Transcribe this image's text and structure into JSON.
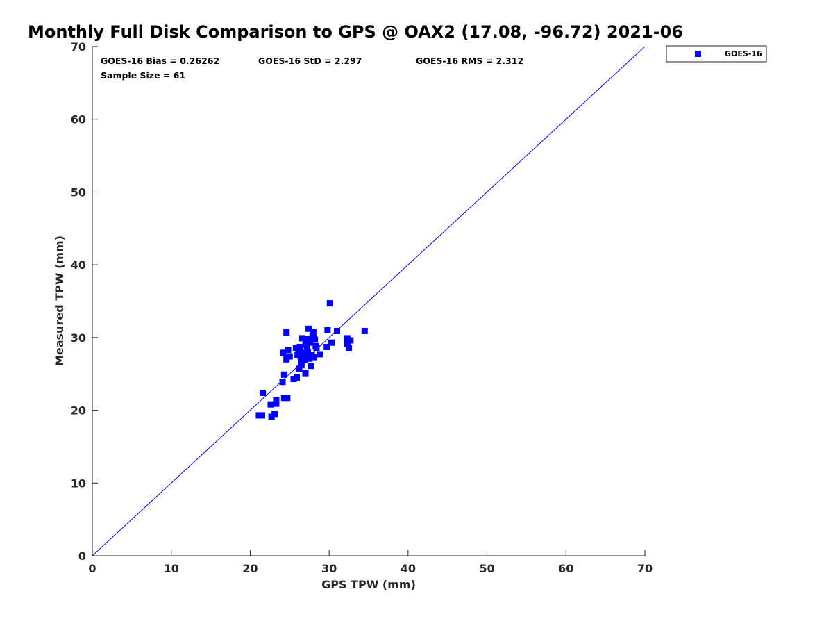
{
  "chart_data": {
    "type": "scatter",
    "title": "Monthly Full Disk Comparison to GPS @ OAX2 (17.08, -96.72) 2021-06",
    "xlabel": "GPS TPW (mm)",
    "ylabel": "Measured TPW (mm)",
    "xlim": [
      0,
      70
    ],
    "ylim": [
      0,
      70
    ],
    "xticks": [
      "0",
      "10",
      "20",
      "30",
      "40",
      "50",
      "60",
      "70"
    ],
    "yticks": [
      "0",
      "10",
      "20",
      "30",
      "40",
      "50",
      "60",
      "70"
    ],
    "grid": false,
    "legend_position": "outside-top-right",
    "reference_line": {
      "x": [
        0,
        70
      ],
      "y": [
        0,
        70
      ],
      "color": "#0000ff"
    },
    "stats": {
      "bias": "GOES-16 Bias = 0.26262",
      "std": "GOES-16 StD = 2.297",
      "rms": "GOES-16 RMS = 2.312",
      "sample_size": "Sample Size = 61"
    },
    "series": [
      {
        "name": "GOES-16",
        "color": "#0000ff",
        "marker": "square",
        "points": [
          [
            21.1,
            19.3
          ],
          [
            21.5,
            19.3
          ],
          [
            21.6,
            22.4
          ],
          [
            22.6,
            20.8
          ],
          [
            22.7,
            19.1
          ],
          [
            23.1,
            19.5
          ],
          [
            23.3,
            20.9
          ],
          [
            23.3,
            21.4
          ],
          [
            24.1,
            23.9
          ],
          [
            24.3,
            21.7
          ],
          [
            24.3,
            24.9
          ],
          [
            24.7,
            21.7
          ],
          [
            24.2,
            27.9
          ],
          [
            24.6,
            30.7
          ],
          [
            24.6,
            27.0
          ],
          [
            24.8,
            28.3
          ],
          [
            25.0,
            27.4
          ],
          [
            25.5,
            24.3
          ],
          [
            25.8,
            28.6
          ],
          [
            25.9,
            24.5
          ],
          [
            26.0,
            27.6
          ],
          [
            26.1,
            28.1
          ],
          [
            26.2,
            25.7
          ],
          [
            26.3,
            28.7
          ],
          [
            26.4,
            27.4
          ],
          [
            26.5,
            26.7
          ],
          [
            26.5,
            26.2
          ],
          [
            26.6,
            29.9
          ],
          [
            26.7,
            27.9
          ],
          [
            26.8,
            27.2
          ],
          [
            26.9,
            26.9
          ],
          [
            27.0,
            25.1
          ],
          [
            27.0,
            29.0
          ],
          [
            27.1,
            29.4
          ],
          [
            27.2,
            27.5
          ],
          [
            27.3,
            28.0
          ],
          [
            27.4,
            31.2
          ],
          [
            27.4,
            29.8
          ],
          [
            27.5,
            27.1
          ],
          [
            27.6,
            29.3
          ],
          [
            27.7,
            26.1
          ],
          [
            27.8,
            27.6
          ],
          [
            27.9,
            30.2
          ],
          [
            28.0,
            29.9
          ],
          [
            28.0,
            30.7
          ],
          [
            28.1,
            27.3
          ],
          [
            28.2,
            29.7
          ],
          [
            28.3,
            28.8
          ],
          [
            28.4,
            28.6
          ],
          [
            28.8,
            27.7
          ],
          [
            29.7,
            28.7
          ],
          [
            29.8,
            31.0
          ],
          [
            30.1,
            34.7
          ],
          [
            30.3,
            29.3
          ],
          [
            31.0,
            30.9
          ],
          [
            32.3,
            29.1
          ],
          [
            32.3,
            29.9
          ],
          [
            32.5,
            28.6
          ],
          [
            32.7,
            29.6
          ],
          [
            34.5,
            30.9
          ],
          [
            27.2,
            28.5
          ]
        ]
      }
    ]
  }
}
